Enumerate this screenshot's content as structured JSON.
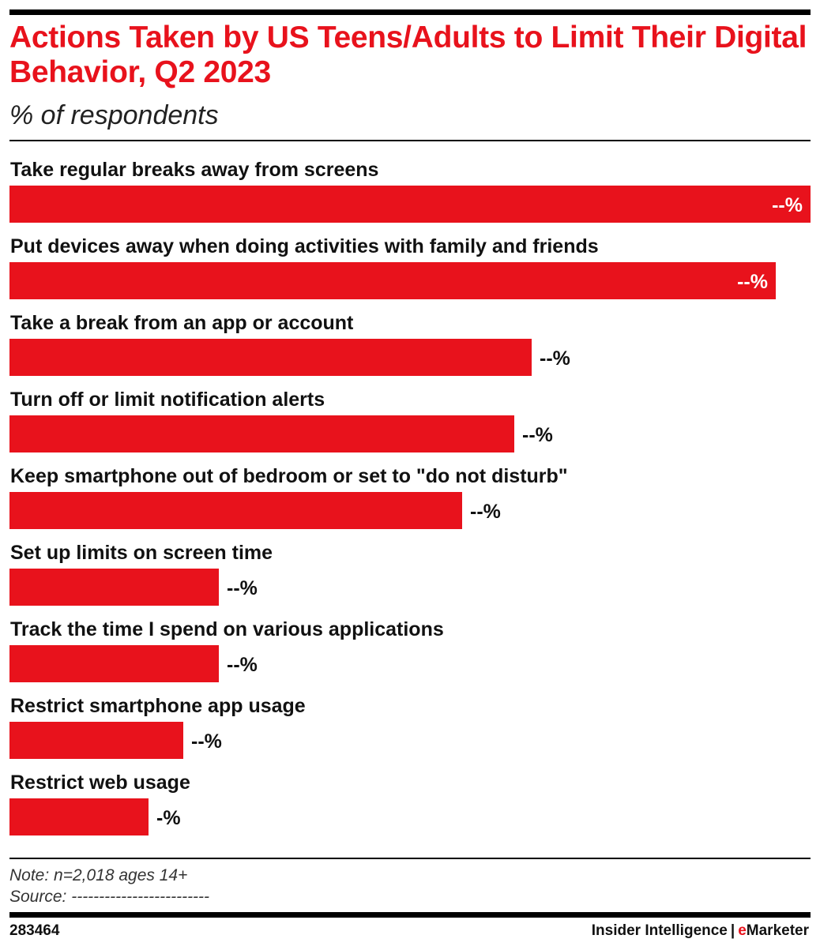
{
  "header": {
    "title": "Actions Taken by US Teens/Adults to Limit Their Digital Behavior, Q2 2023",
    "subtitle": "% of respondents"
  },
  "chart_data": {
    "type": "bar",
    "orientation": "horizontal",
    "title": "Actions Taken by US Teens/Adults to Limit Their Digital Behavior, Q2 2023",
    "subtitle": "% of respondents",
    "categories": [
      "Take regular breaks away from screens",
      "Put devices away when doing activities with family and friends",
      "Take a break from an app or account",
      "Turn off or limit notification alerts",
      "Keep smartphone out of bedroom or set to \"do not disturb\"",
      "Set up limits on screen time",
      "Track the time I spend on various applications",
      "Restrict smartphone app usage",
      "Restrict web usage"
    ],
    "values": [
      46,
      44,
      30,
      29,
      26,
      12,
      12,
      10,
      8
    ],
    "value_labels": [
      "--%",
      "--%",
      "--%",
      "--%",
      "--%",
      "--%",
      "--%",
      "--%",
      "-%"
    ],
    "xlim": [
      0,
      46
    ],
    "color": "#e8121c",
    "grid": false
  },
  "footer": {
    "note": "Note: n=2,018 ages 14+",
    "source": "Source: -------------------------",
    "chart_id": "283464",
    "brand_primary": "Insider Intelligence",
    "brand_separator": "|",
    "brand_secondary_accent": "e",
    "brand_secondary_rest": "Marketer"
  }
}
